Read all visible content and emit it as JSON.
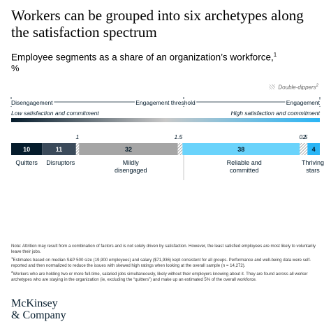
{
  "title": "Workers can be grouped into six archetypes along the satisfaction spectrum",
  "subtitle": "Employee segments as a share of an organization’s workforce,",
  "subtitle_ref": "1",
  "unit": "%",
  "legend": {
    "double_dippers": "Double-dippers",
    "double_dippers_ref": "2"
  },
  "scale": {
    "left": "Disengagement",
    "middle": "Engagement threshold",
    "right": "Engagement",
    "low_label": "Low satisfaction and commitment",
    "high_label": "High satisfaction and commitment"
  },
  "chart_data": {
    "type": "bar",
    "orientation": "horizontal-stacked",
    "title": "Employee segments as a share of an organization’s workforce,",
    "unit": "%",
    "categories": [
      "Quitters",
      "Disruptors",
      "Mildly disengaged",
      "Reliable and committed",
      "Thriving stars"
    ],
    "series": [
      {
        "values": [
          10,
          11,
          32,
          38,
          4
        ]
      },
      {
        "name": "Double-dippers",
        "values": [
          0,
          1,
          1.5,
          2,
          0.5
        ]
      }
    ],
    "colors": {
      "Quitters": "#051c2c",
      "Disruptors": "#3b4a5a",
      "Mildly disengaged": "#a5a5a5",
      "Reliable and committed": "#6ad3fb",
      "Thriving stars": "#2ab5f5"
    },
    "segments": [
      {
        "category": "Quitters",
        "value": 10,
        "kind": "main",
        "color": "#051c2c",
        "text": "#ffffff"
      },
      {
        "category": "Disruptors",
        "value": 11,
        "kind": "main",
        "color": "#3b4a5a",
        "text": "#ffffff"
      },
      {
        "category": "Disruptors",
        "value": 1,
        "kind": "double",
        "color": "#3b4a5a"
      },
      {
        "category": "Mildly disengaged",
        "value": 32,
        "kind": "main",
        "color": "#a5a5a5",
        "text": "#051c2c"
      },
      {
        "category": "Mildly disengaged",
        "value": 1.5,
        "kind": "double",
        "color": "#a5a5a5"
      },
      {
        "category": "Reliable and committed",
        "value": 38,
        "kind": "main",
        "color": "#6ad3fb",
        "text": "#051c2c"
      },
      {
        "category": "Reliable and committed",
        "value": 2,
        "kind": "double",
        "color": "#6ad3fb"
      },
      {
        "category": "Thriving stars",
        "value": 0.5,
        "kind": "double",
        "color": "#2ab5f5"
      },
      {
        "category": "Thriving stars",
        "value": 4,
        "kind": "main",
        "color": "#2ab5f5",
        "text": "#051c2c"
      }
    ],
    "category_labels": [
      {
        "lines": [
          "Quitters"
        ]
      },
      {
        "lines": [
          "Disruptors"
        ]
      },
      {
        "lines": [
          "Mildly",
          "disengaged"
        ]
      },
      {
        "lines": [
          "Reliable and",
          "committed"
        ]
      },
      {
        "lines": [
          "Thriving",
          "stars"
        ]
      }
    ]
  },
  "notes": [
    "Note: Attrition may result from a combination of factors and is not solely driven by satisfaction. However, the least satisfied employees are most likely to voluntarily leave their jobs.",
    "Estimates based on median S&P 500 size (19,900 employees) and salary ($71,936) kept consistent for all groups. Performance and well-being data were self-reported and then normalized to reduce the issues with skewed high ratings when looking at the overall sample (n = 14,272).",
    "Workers who are holding two or more full-time, salaried jobs simultaneously, likely without their employers knowing about it. They are found across all worker archetypes who are staying in the organization (ie, excluding the “quitters”) and make up an estimated 5% of the overall workforce."
  ],
  "note_refs": [
    "1",
    "2"
  ],
  "logo": {
    "line1": "McKinsey",
    "line2": "& Company"
  }
}
